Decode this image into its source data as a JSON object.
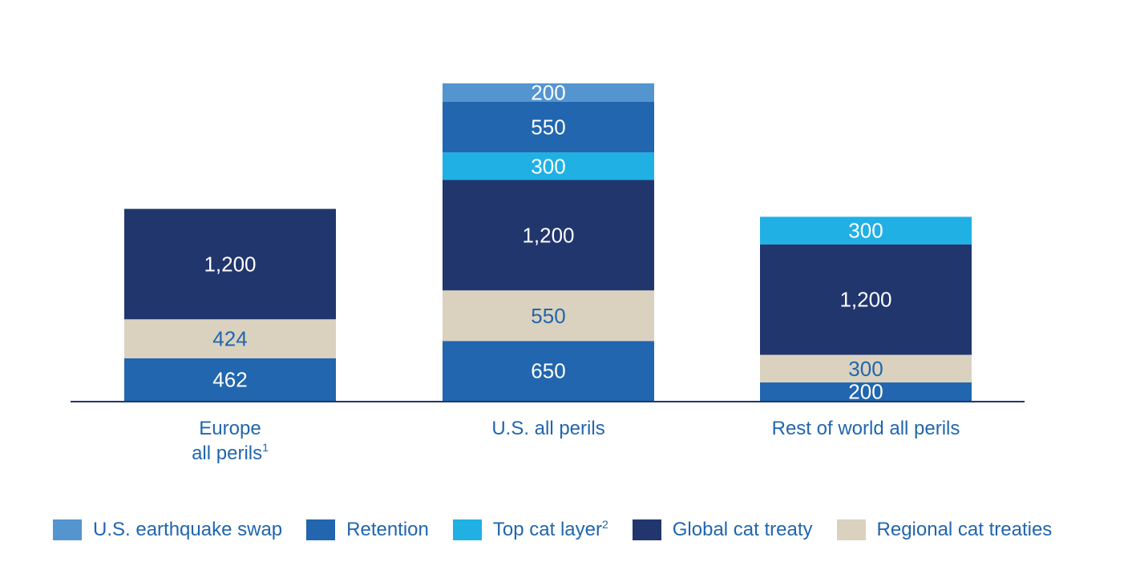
{
  "chart_data": {
    "type": "bar",
    "stacked": true,
    "categories": [
      "Europe all perils",
      "U.S. all perils",
      "Rest of world all perils"
    ],
    "category_lines": [
      [
        "Europe",
        "all perils",
        "1"
      ],
      [
        "U.S. all perils",
        "",
        ""
      ],
      [
        "Rest of world all perils",
        "",
        ""
      ]
    ],
    "series": [
      {
        "name": "Retention",
        "sup": "",
        "color": "#2166ae",
        "label_color": "#ffffff",
        "values": [
          462,
          650,
          200
        ]
      },
      {
        "name": "Regional cat treaties",
        "sup": "",
        "color": "#dad2bf",
        "label_color": "#2166ae",
        "values": [
          424,
          550,
          300
        ]
      },
      {
        "name": "Global cat treaty",
        "sup": "",
        "color": "#22366e",
        "label_color": "#ffffff",
        "values": [
          1200,
          1200,
          1200
        ]
      },
      {
        "name": "Top cat layer",
        "sup": "2",
        "color": "#20b0e4",
        "label_color": "#ffffff",
        "values": [
          0,
          300,
          300
        ]
      },
      {
        "name": "Retention",
        "sup": "",
        "color": "#2166ae",
        "label_color": "#ffffff",
        "values": [
          0,
          550,
          0
        ]
      },
      {
        "name": "U.S. earthquake swap",
        "sup": "",
        "color": "#5495d0",
        "label_color": "#ffffff",
        "values": [
          0,
          200,
          0
        ]
      }
    ],
    "legend": [
      {
        "name": "U.S. earthquake swap",
        "sup": "",
        "color": "#5495d0"
      },
      {
        "name": "Retention",
        "sup": "",
        "color": "#2166ae"
      },
      {
        "name": "Top cat layer",
        "sup": "2",
        "color": "#20b0e4"
      },
      {
        "name": "Global cat treaty",
        "sup": "",
        "color": "#22366e"
      },
      {
        "name": "Regional cat treaties",
        "sup": "",
        "color": "#dad2bf"
      }
    ],
    "legend_position": "bottom",
    "ylim": [
      0,
      3450
    ],
    "grid": false,
    "title": "",
    "xlabel": "",
    "ylabel": ""
  }
}
